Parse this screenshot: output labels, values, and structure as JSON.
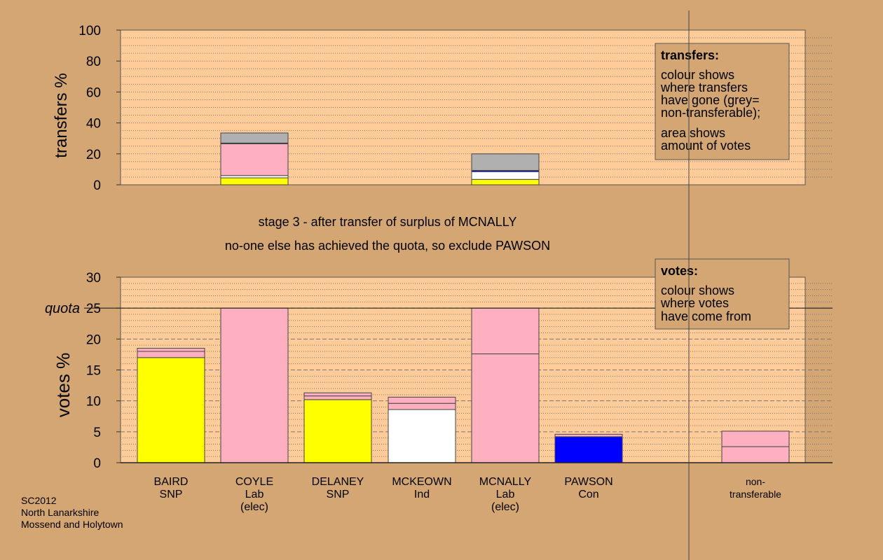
{
  "chart_data": [
    {
      "type": "bar",
      "ylabel": "transfers %",
      "ylim": [
        0,
        100
      ],
      "yticks": [
        0,
        20,
        40,
        60,
        80,
        100
      ],
      "grid": true,
      "bars": [
        {
          "slot": 1,
          "segments": [
            {
              "value": 4.5,
              "color": "#ffff00"
            },
            {
              "value": 1.5,
              "color": "#ffffff"
            },
            {
              "value": 20.5,
              "color": "#ffb0c0"
            },
            {
              "value": 0.5,
              "color": "#0000ff"
            },
            {
              "value": 6.5,
              "color": "#b0b0b0"
            }
          ]
        },
        {
          "slot": 4,
          "segments": [
            {
              "value": 3.5,
              "color": "#ffff00"
            },
            {
              "value": 5.0,
              "color": "#ffffff"
            },
            {
              "value": 0.8,
              "color": "#0000ff"
            },
            {
              "value": 10.7,
              "color": "#b0b0b0"
            }
          ]
        }
      ],
      "legend": {
        "title": "transfers:",
        "lines1": [
          "colour shows",
          "where transfers",
          "have gone (grey=",
          "non-transferable);"
        ],
        "lines2": [
          "area shows",
          "amount of votes"
        ]
      }
    },
    {
      "type": "bar",
      "ylabel": "votes %",
      "ylim": [
        0,
        30
      ],
      "yticks": [
        0,
        5,
        10,
        15,
        20,
        25,
        30
      ],
      "grid": true,
      "quota": {
        "label": "quota",
        "value": 25
      },
      "categories": [
        {
          "lines": [
            "BAIRD",
            "SNP"
          ]
        },
        {
          "lines": [
            "COYLE",
            "Lab",
            "(elec)"
          ]
        },
        {
          "lines": [
            "DELANEY",
            "SNP"
          ]
        },
        {
          "lines": [
            "MCKEOWN",
            "Ind"
          ]
        },
        {
          "lines": [
            "MCNALLY",
            "Lab",
            "(elec)"
          ]
        },
        {
          "lines": [
            "PAWSON",
            "Con"
          ]
        },
        {
          "lines": [
            "non-",
            "transferable"
          ]
        }
      ],
      "bars": [
        {
          "slot": 0,
          "segments": [
            {
              "value": 17.0,
              "color": "#ffff00"
            },
            {
              "value": 1.0,
              "color": "#ffb0c0"
            },
            {
              "value": 0.5,
              "color": "#ffb0c0"
            }
          ]
        },
        {
          "slot": 1,
          "segments": [
            {
              "value": 25.0,
              "color": "#ffb0c0"
            }
          ]
        },
        {
          "slot": 2,
          "segments": [
            {
              "value": 10.2,
              "color": "#ffff00"
            },
            {
              "value": 0.6,
              "color": "#ffb0c0"
            },
            {
              "value": 0.5,
              "color": "#ffb0c0"
            }
          ]
        },
        {
          "slot": 3,
          "segments": [
            {
              "value": 8.6,
              "color": "#ffffff"
            },
            {
              "value": 1.0,
              "color": "#ffb0c0"
            },
            {
              "value": 1.0,
              "color": "#ffb0c0"
            }
          ]
        },
        {
          "slot": 4,
          "segments": [
            {
              "value": 17.6,
              "color": "#ffb0c0"
            },
            {
              "value": 7.4,
              "color": "#ffb0c0"
            }
          ]
        },
        {
          "slot": 5,
          "segments": [
            {
              "value": 4.2,
              "color": "#0000ff"
            },
            {
              "value": 0.4,
              "color": "#ffb0c0"
            }
          ]
        },
        {
          "slot": 6,
          "segments": [
            {
              "value": 2.6,
              "color": "#ffb0c0"
            },
            {
              "value": 2.5,
              "color": "#ffb0c0"
            }
          ]
        }
      ],
      "legend": {
        "title": "votes:",
        "lines1": [
          "colour shows",
          "where votes",
          "have come from"
        ]
      }
    }
  ],
  "stage_text": {
    "line1": "stage 3 - after transfer of surplus of MCNALLY",
    "line2": "no-one else has achieved the quota, so exclude PAWSON"
  },
  "footer": {
    "lines": [
      "SC2012",
      "North Lanarkshire",
      "Mossend and Holytown"
    ]
  }
}
